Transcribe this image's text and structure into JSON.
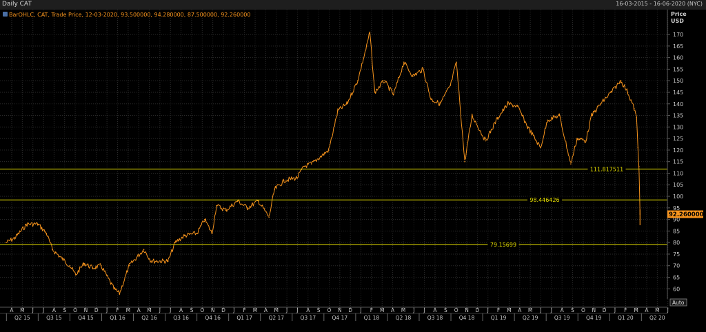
{
  "window": {
    "title": "Daily CAT",
    "date_range": "16-03-2015 - 16-06-2020 (NYC)"
  },
  "legend": {
    "text": "BarOHLC, CAT, Trade Price, 12-03-2020, 93.500000, 94.280000, 87.500000, 92.260000"
  },
  "price_axis": {
    "title_line1": "Price",
    "title_line2": "USD",
    "current_price_label": "92.260000",
    "auto_button": "Auto"
  },
  "colors": {
    "background": "#000000",
    "series": "#f7941d",
    "levels": "#e8e000",
    "grid": "#2b2b2b",
    "text": "#c8c8c8",
    "price_tag": "#f7941d"
  },
  "chart_data": {
    "type": "line",
    "title": "Daily CAT",
    "ylabel": "Price USD",
    "ylim": [
      56,
      175
    ],
    "y_ticks": [
      60,
      65,
      70,
      75,
      80,
      85,
      90,
      95,
      100,
      105,
      110,
      115,
      120,
      125,
      130,
      135,
      140,
      145,
      150,
      155,
      160,
      165,
      170
    ],
    "grid": true,
    "x_month_ticks": [
      "A",
      "M",
      "J",
      "J",
      "A",
      "S",
      "O",
      "N",
      "D",
      "J",
      "F",
      "M",
      "A",
      "M",
      "J",
      "J",
      "A",
      "S",
      "O",
      "N",
      "D",
      "J",
      "F",
      "M",
      "A",
      "M",
      "J",
      "J",
      "A",
      "S",
      "O",
      "N",
      "D",
      "J",
      "F",
      "M",
      "A",
      "M",
      "J",
      "J",
      "A",
      "S",
      "O",
      "N",
      "D",
      "J",
      "F",
      "M",
      "A",
      "M",
      "J",
      "J",
      "A",
      "S",
      "O",
      "N",
      "D",
      "J",
      "F",
      "M",
      "A",
      "M",
      "J"
    ],
    "x_quarter_labels": [
      "Q2 15",
      "Q3 15",
      "Q4 15",
      "Q1 16",
      "Q2 16",
      "Q3 16",
      "Q4 16",
      "Q1 17",
      "Q2 17",
      "Q3 17",
      "Q4 17",
      "Q1 18",
      "Q2 18",
      "Q3 18",
      "Q4 18",
      "Q1 19",
      "Q2 19",
      "Q3 19",
      "Q4 19",
      "Q1 20",
      "Q2 20"
    ],
    "series": [
      {
        "x": [
          "2015-03-16",
          "2015-04-10",
          "2015-05-15",
          "2015-06-15",
          "2015-07-10",
          "2015-07-27",
          "2015-08-24",
          "2015-09-15",
          "2015-10-02",
          "2015-10-26",
          "2015-11-20",
          "2015-12-14",
          "2016-01-20",
          "2016-02-05",
          "2016-03-04",
          "2016-04-15",
          "2016-05-06",
          "2016-06-24",
          "2016-07-14",
          "2016-08-10",
          "2016-09-15",
          "2016-10-07",
          "2016-10-28",
          "2016-11-10",
          "2016-12-07",
          "2017-01-10",
          "2017-02-07",
          "2017-03-10",
          "2017-04-10",
          "2017-04-26",
          "2017-05-26",
          "2017-06-30",
          "2017-07-20",
          "2017-08-10",
          "2017-09-29",
          "2017-10-25",
          "2017-11-20",
          "2017-12-21",
          "2018-01-16",
          "2018-01-25",
          "2018-02-08",
          "2018-03-07",
          "2018-04-03",
          "2018-05-03",
          "2018-05-29",
          "2018-06-27",
          "2018-07-20",
          "2018-08-15",
          "2018-09-14",
          "2018-10-01",
          "2018-10-25",
          "2018-11-15",
          "2018-12-24",
          "2019-01-28",
          "2019-02-26",
          "2019-03-25",
          "2019-04-24",
          "2019-05-31",
          "2019-06-20",
          "2019-07-24",
          "2019-08-26",
          "2019-09-13",
          "2019-10-08",
          "2019-10-25",
          "2019-11-20",
          "2019-12-20",
          "2020-01-17",
          "2020-02-06",
          "2020-02-24",
          "2020-03-02",
          "2020-03-06",
          "2020-03-09",
          "2020-03-12"
        ],
        "values": [
          80,
          82,
          88,
          88,
          84,
          77,
          73,
          70,
          66,
          71,
          69,
          70,
          60,
          58,
          70,
          77,
          72,
          72,
          80,
          83,
          84,
          90,
          84,
          96,
          94,
          98,
          95,
          98,
          91,
          103,
          107,
          108,
          113,
          114,
          120,
          137,
          140,
          150,
          165,
          171,
          145,
          150,
          144,
          158,
          152,
          155,
          142,
          140,
          148,
          158,
          115,
          135,
          124,
          134,
          140,
          139,
          130,
          121,
          133,
          135,
          114,
          125,
          124,
          135,
          140,
          145,
          150,
          145,
          138,
          134,
          121,
          113,
          92.26
        ]
      }
    ],
    "horizontal_levels": [
      {
        "value": 111.817511,
        "label": "111.817511"
      },
      {
        "value": 98.446426,
        "label": "98.446426"
      },
      {
        "value": 79.15699,
        "label": "79.15699"
      }
    ]
  }
}
